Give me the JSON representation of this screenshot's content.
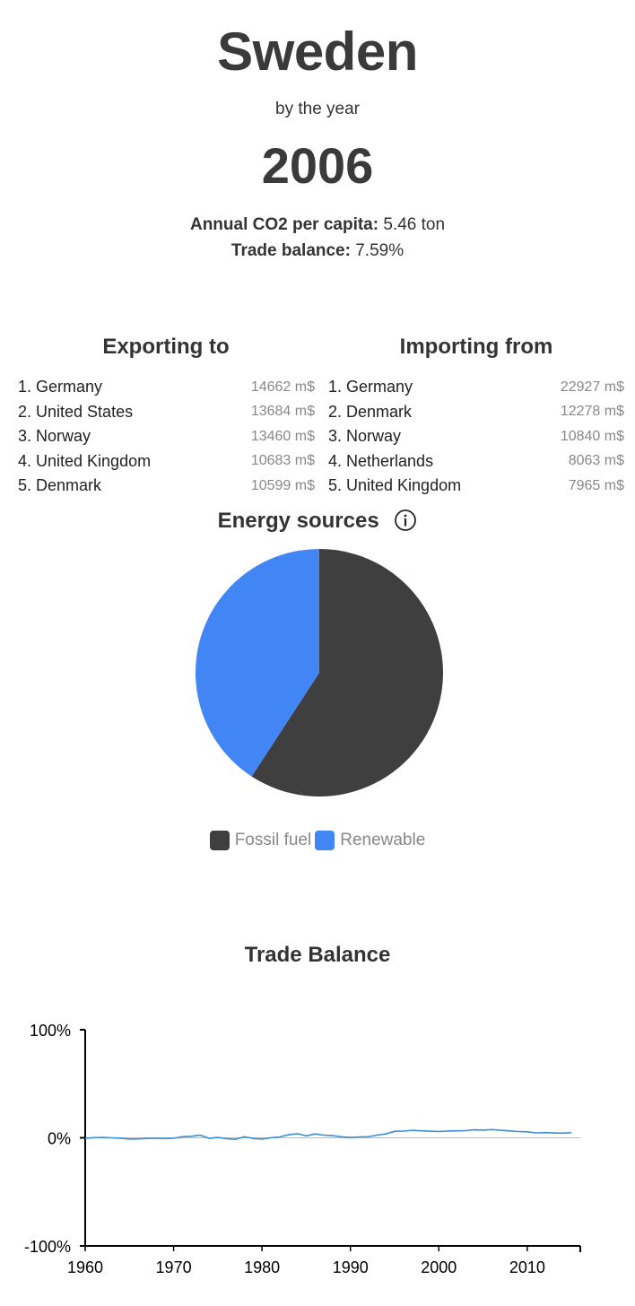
{
  "header": {
    "country": "Sweden",
    "by_the_year": "by the year",
    "year": "2006"
  },
  "stats": {
    "co2_label": "Annual CO2 per capita:",
    "co2_value": "5.46 ton",
    "trade_label": "Trade balance:",
    "trade_value": "7.59%"
  },
  "exports": {
    "title": "Exporting to",
    "items": [
      {
        "name": "1. Germany",
        "value": "14662 m$"
      },
      {
        "name": "2. United States",
        "value": "13684 m$"
      },
      {
        "name": "3. Norway",
        "value": "13460 m$"
      },
      {
        "name": "4. United Kingdom",
        "value": "10683 m$"
      },
      {
        "name": "5. Denmark",
        "value": "10599 m$"
      }
    ]
  },
  "imports": {
    "title": "Importing from",
    "items": [
      {
        "name": "1. Germany",
        "value": "22927 m$"
      },
      {
        "name": "2. Denmark",
        "value": "12278 m$"
      },
      {
        "name": "3. Norway",
        "value": "10840 m$"
      },
      {
        "name": "4. Netherlands",
        "value": "8063 m$"
      },
      {
        "name": "5. United Kingdom",
        "value": "7965 m$"
      }
    ]
  },
  "energy": {
    "title": "Energy sources",
    "info_icon": "info-icon"
  },
  "trade_chart": {
    "title": "Trade Balance"
  },
  "chart_data": [
    {
      "type": "pie",
      "title": "Energy sources",
      "categories": [
        "Fossil fuel",
        "Renewable"
      ],
      "values": [
        59.2,
        40.8
      ],
      "colors": [
        "#3f3f3f",
        "#4285f4"
      ],
      "legend": "bottom"
    },
    {
      "type": "line",
      "title": "Trade Balance",
      "xlabel": "",
      "ylabel": "",
      "xlim": [
        1960,
        2016
      ],
      "ylim": [
        -100,
        100
      ],
      "x_ticks": [
        "1960",
        "1970",
        "1980",
        "1990",
        "2000",
        "2010"
      ],
      "y_ticks": [
        "100%",
        "0%",
        "-100%"
      ],
      "color": "#3b8fd6",
      "series": [
        {
          "x": [
            1960,
            1961,
            1962,
            1963,
            1964,
            1965,
            1966,
            1967,
            1968,
            1969,
            1970,
            1971,
            1972,
            1973,
            1974,
            1975,
            1976,
            1977,
            1978,
            1979,
            1980,
            1981,
            1982,
            1983,
            1984,
            1985,
            1986,
            1987,
            1988,
            1989,
            1990,
            1991,
            1992,
            1993,
            1994,
            1995,
            1996,
            1997,
            1998,
            1999,
            2000,
            2001,
            2002,
            2003,
            2004,
            2005,
            2006,
            2007,
            2008,
            2009,
            2010,
            2011,
            2012,
            2013,
            2014,
            2015
          ],
          "values": [
            -0.5,
            0.2,
            0.3,
            0.0,
            -0.3,
            -1.2,
            -1.0,
            -0.6,
            -0.4,
            -0.7,
            -0.3,
            1.0,
            1.4,
            2.5,
            -0.4,
            0.3,
            -0.8,
            -1.4,
            1.0,
            -0.6,
            -1.2,
            0.1,
            0.8,
            2.8,
            3.8,
            1.8,
            3.6,
            2.5,
            2.0,
            0.9,
            0.3,
            0.8,
            1.0,
            2.5,
            3.6,
            6.0,
            6.2,
            6.9,
            6.5,
            6.1,
            5.8,
            6.3,
            6.5,
            6.6,
            7.4,
            7.1,
            7.6,
            7.0,
            6.4,
            5.8,
            5.6,
            4.6,
            4.8,
            4.5,
            4.3,
            4.8
          ]
        }
      ]
    }
  ]
}
